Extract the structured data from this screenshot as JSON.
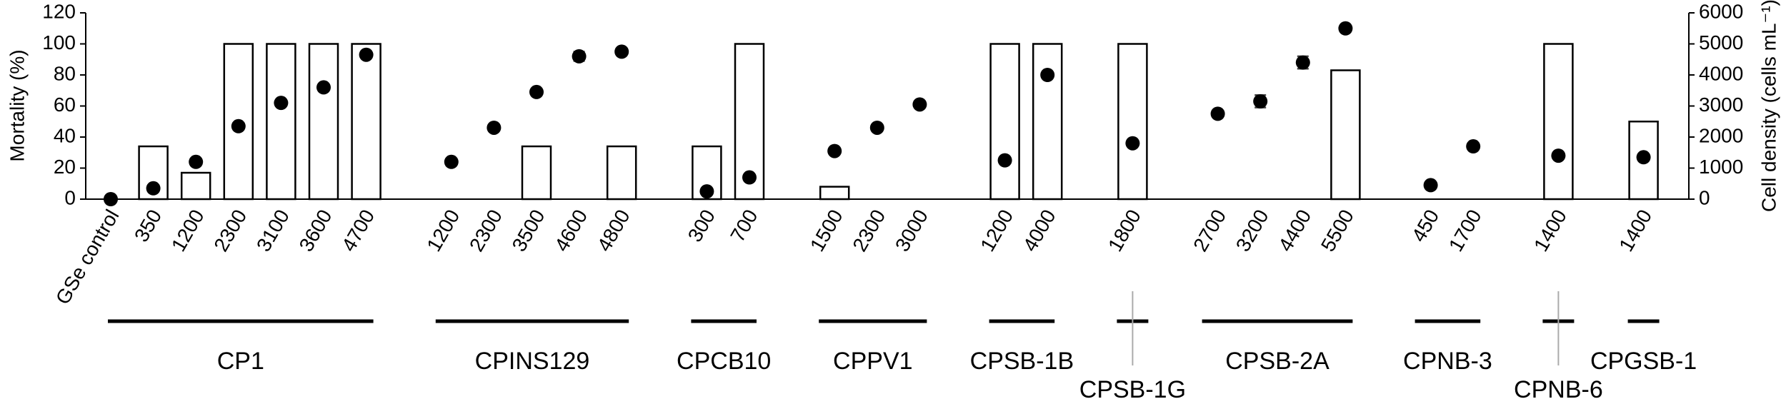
{
  "chart_data": {
    "type": "bar",
    "y_label": "Mortality (%)",
    "y2_label": "Cell density (cells mL⁻¹)",
    "categories": [
      "GSe control",
      "350",
      "1200",
      "2300",
      "3100",
      "3600",
      "4700",
      null,
      "1200",
      "2300",
      "3500",
      "4600",
      "4800",
      null,
      "300",
      "700",
      null,
      "1500",
      "2300",
      "3000",
      null,
      "1200",
      "4000",
      null,
      "1800",
      null,
      "2700",
      "3200",
      "4400",
      "5500",
      null,
      "450",
      "1700",
      null,
      "1400",
      null,
      "1400"
    ],
    "groups": [
      "CP1",
      "CPINS129",
      "CPCB10",
      "CPPV1",
      "CPSB-1B",
      "CPSB-1G",
      "CPSB-2A",
      "CPNB-3",
      "CPNB-6",
      "CPGSB-1"
    ],
    "series": [
      {
        "type": "bar",
        "color": "#ffffff",
        "edge_color": "#000000",
        "values": [
          0,
          34,
          17,
          100,
          100,
          100,
          100,
          null,
          0,
          0,
          34,
          0,
          34,
          null,
          34,
          100,
          null,
          8,
          0,
          0,
          null,
          100,
          100,
          null,
          100,
          null,
          0,
          0,
          0,
          83,
          null,
          0,
          0,
          null,
          100,
          null,
          50
        ]
      },
      {
        "type": "scatter",
        "axis": "y2",
        "color": "#000000",
        "values": [
          0,
          350,
          1200,
          2350,
          3100,
          3600,
          4650,
          null,
          1200,
          2300,
          3450,
          4600,
          4750,
          null,
          250,
          700,
          null,
          1550,
          2300,
          3050,
          null,
          1250,
          4000,
          null,
          1800,
          null,
          2750,
          3150,
          4400,
          5500,
          null,
          450,
          1700,
          null,
          1400,
          null,
          1350
        ],
        "errors": [
          null,
          null,
          null,
          null,
          null,
          null,
          null,
          null,
          null,
          null,
          null,
          150,
          null,
          null,
          null,
          null,
          null,
          null,
          null,
          null,
          null,
          null,
          null,
          null,
          null,
          null,
          null,
          200,
          200,
          null,
          null,
          null,
          null,
          null,
          null,
          null,
          null
        ]
      }
    ],
    "ylim": [
      0,
      120
    ],
    "yticks": [
      0,
      20,
      40,
      60,
      80,
      100,
      120
    ],
    "y2lim": [
      0,
      6000
    ],
    "y2ticks": [
      0,
      1000,
      2000,
      3000,
      4000,
      5000,
      6000
    ],
    "grid": false
  }
}
